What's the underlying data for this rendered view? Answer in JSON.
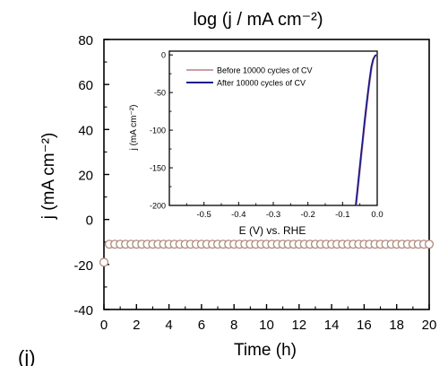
{
  "header": {
    "title": "log (j / mA cm⁻²)"
  },
  "panel_label": "(j)",
  "chart_data": [
    {
      "type": "scatter",
      "title": "",
      "xlabel": "Time (h)",
      "ylabel": "j (mA cm⁻²)",
      "xlim": [
        0,
        20
      ],
      "ylim": [
        -40,
        80
      ],
      "x_ticks": [
        "0",
        "2",
        "4",
        "6",
        "8",
        "10",
        "12",
        "14",
        "16",
        "18",
        "20"
      ],
      "y_ticks": [
        "80",
        "60",
        "40",
        "20",
        "0",
        "-20",
        "-40"
      ],
      "grid": false,
      "marker": "open-circle",
      "marker_color": "#b08a80",
      "series": [
        {
          "x": [
            0,
            0.33,
            0.67,
            1.0,
            1.33,
            1.67,
            2.0,
            2.33,
            2.67,
            3.0,
            3.33,
            3.67,
            4.0,
            4.33,
            4.67,
            5.0,
            5.33,
            5.67,
            6.0,
            6.33,
            6.67,
            7.0,
            7.33,
            7.67,
            8.0,
            8.33,
            8.67,
            9.0,
            9.33,
            9.67,
            10.0,
            10.33,
            10.67,
            11.0,
            11.33,
            11.67,
            12.0,
            12.33,
            12.67,
            13.0,
            13.33,
            13.67,
            14.0,
            14.33,
            14.67,
            15.0,
            15.33,
            15.67,
            16.0,
            16.33,
            16.67,
            17.0,
            17.33,
            17.67,
            18.0,
            18.33,
            18.67,
            19.0,
            19.33,
            19.67,
            20.0
          ],
          "y": [
            -19,
            -11,
            -11,
            -11,
            -11,
            -11,
            -11,
            -11,
            -11,
            -11,
            -11,
            -11,
            -11,
            -11,
            -11,
            -11,
            -11,
            -11,
            -11,
            -11,
            -11,
            -11,
            -11,
            -11,
            -11,
            -11,
            -11,
            -11,
            -11,
            -11,
            -11,
            -11,
            -11,
            -11,
            -11,
            -11,
            -11,
            -11,
            -11,
            -11,
            -11,
            -11,
            -11,
            -11,
            -11,
            -11,
            -11,
            -11,
            -11,
            -11,
            -11,
            -11,
            -11,
            -11,
            -11,
            -11,
            -11,
            -11,
            -11,
            -11,
            -11
          ]
        }
      ]
    },
    {
      "type": "line",
      "title": "",
      "xlabel": "E (V) vs. RHE",
      "ylabel": "j (mA cm⁻²)",
      "xlim": [
        -0.6,
        0.0
      ],
      "ylim": [
        -200,
        5
      ],
      "x_ticks": [
        "-0.5",
        "-0.4",
        "-0.3",
        "-0.2",
        "-0.1",
        "0.0"
      ],
      "y_ticks": [
        "0",
        "-50",
        "-100",
        "-150",
        "-200"
      ],
      "legend_position": "top-left",
      "series": [
        {
          "name": "Before 10000 cycles of CV",
          "color": "#c07a8a",
          "x": [
            -0.06,
            -0.055,
            -0.05,
            -0.045,
            -0.04,
            -0.035,
            -0.03,
            -0.025,
            -0.02,
            -0.015,
            -0.01,
            -0.005,
            0.0
          ],
          "y": [
            -200,
            -178,
            -156,
            -134,
            -112,
            -90,
            -70,
            -50,
            -32,
            -16,
            -6,
            -1,
            0
          ]
        },
        {
          "name": "After 10000 cycles of CV",
          "color": "#1a1a8c",
          "x": [
            -0.062,
            -0.057,
            -0.052,
            -0.047,
            -0.042,
            -0.037,
            -0.032,
            -0.027,
            -0.022,
            -0.017,
            -0.012,
            -0.006,
            -0.001
          ],
          "y": [
            -200,
            -178,
            -156,
            -134,
            -112,
            -90,
            -70,
            -50,
            -32,
            -16,
            -6,
            -1,
            0
          ]
        }
      ]
    }
  ]
}
